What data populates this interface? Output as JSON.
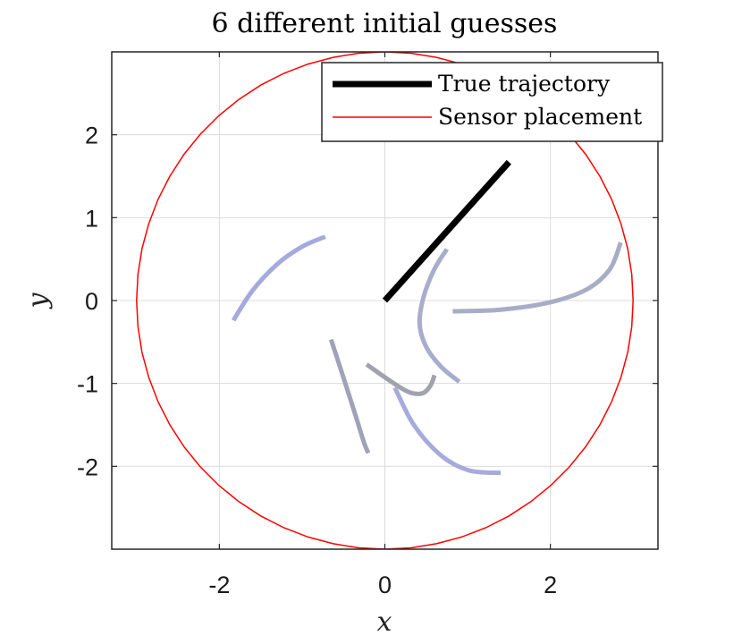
{
  "chart_data": {
    "type": "line",
    "title": "6 different initial guesses",
    "xlabel": "x",
    "ylabel": "y",
    "xlim": [
      -3.3,
      3.3
    ],
    "ylim": [
      -3.0,
      3.0
    ],
    "xticks": [
      -2,
      0,
      2
    ],
    "yticks": [
      -2,
      -1,
      0,
      1,
      2
    ],
    "grid": true,
    "legend_position": "top-right",
    "legend": [
      {
        "label": "True trajectory",
        "color": "#000000",
        "style": "thick"
      },
      {
        "label": "Sensor placement",
        "color": "#ff0000",
        "style": "thin"
      }
    ],
    "sensor_circle": {
      "center": [
        0,
        0
      ],
      "radius": 3.0,
      "color": "#ff0000"
    },
    "true_trajectory": {
      "color": "#000000",
      "x": [
        0,
        1.5
      ],
      "y": [
        0,
        1.67
      ]
    },
    "initial_guesses": [
      {
        "color": "#a4aadd",
        "x": [
          -1.83,
          -1.6,
          -1.3,
          -1.0,
          -0.72
        ],
        "y": [
          -0.24,
          0.12,
          0.44,
          0.65,
          0.77
        ]
      },
      {
        "color": "#a8adcc",
        "x": [
          0.75,
          0.6,
          0.47,
          0.42,
          0.5,
          0.68,
          0.9
        ],
        "y": [
          0.62,
          0.38,
          0.05,
          -0.28,
          -0.56,
          -0.8,
          -0.98
        ]
      },
      {
        "color": "#a8adc6",
        "x": [
          0.82,
          1.4,
          2.0,
          2.45,
          2.72,
          2.85
        ],
        "y": [
          -0.13,
          -0.11,
          -0.02,
          0.14,
          0.38,
          0.7
        ]
      },
      {
        "color": "#9fa2b8",
        "x": [
          -0.65,
          -0.5,
          -0.35,
          -0.25,
          -0.2
        ],
        "y": [
          -0.47,
          -0.93,
          -1.4,
          -1.72,
          -1.84
        ]
      },
      {
        "color": "#a0a2ae",
        "x": [
          -0.22,
          0.05,
          0.28,
          0.45,
          0.55,
          0.6
        ],
        "y": [
          -0.77,
          -0.96,
          -1.1,
          -1.12,
          -1.03,
          -0.9
        ]
      },
      {
        "color": "#a6abdb",
        "x": [
          0.12,
          0.35,
          0.68,
          1.02,
          1.4
        ],
        "y": [
          -1.05,
          -1.5,
          -1.87,
          -2.05,
          -2.08
        ]
      }
    ]
  }
}
